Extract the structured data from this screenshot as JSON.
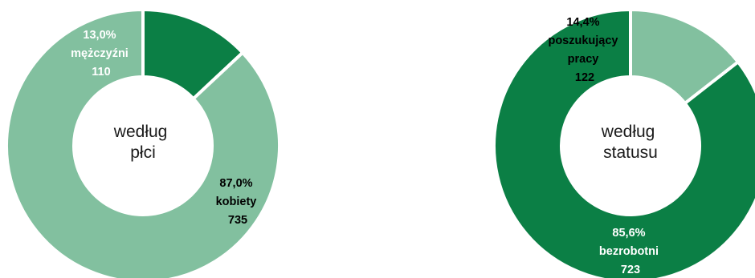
{
  "chart_data": [
    {
      "type": "pie",
      "center_label": [
        "według",
        "płci"
      ],
      "categories": [
        "mężczyźni",
        "kobiety"
      ],
      "values": [
        110,
        735
      ],
      "percents": [
        "13,0%",
        "87,0%"
      ],
      "colors": [
        "#0b7f45",
        "#82c09f"
      ],
      "label_colors": [
        "#ffffff",
        "#000000"
      ]
    },
    {
      "type": "pie",
      "center_label": [
        "według",
        "statusu"
      ],
      "categories": [
        "poszukujący pracy",
        "bezrobotni"
      ],
      "category_lines": [
        [
          "poszukujący",
          "pracy"
        ],
        [
          "bezrobotni"
        ]
      ],
      "values": [
        122,
        723
      ],
      "percents": [
        "14,4%",
        "85,6%"
      ],
      "colors": [
        "#82c09f",
        "#0b7f45"
      ],
      "label_colors": [
        "#000000",
        "#ffffff"
      ]
    }
  ]
}
